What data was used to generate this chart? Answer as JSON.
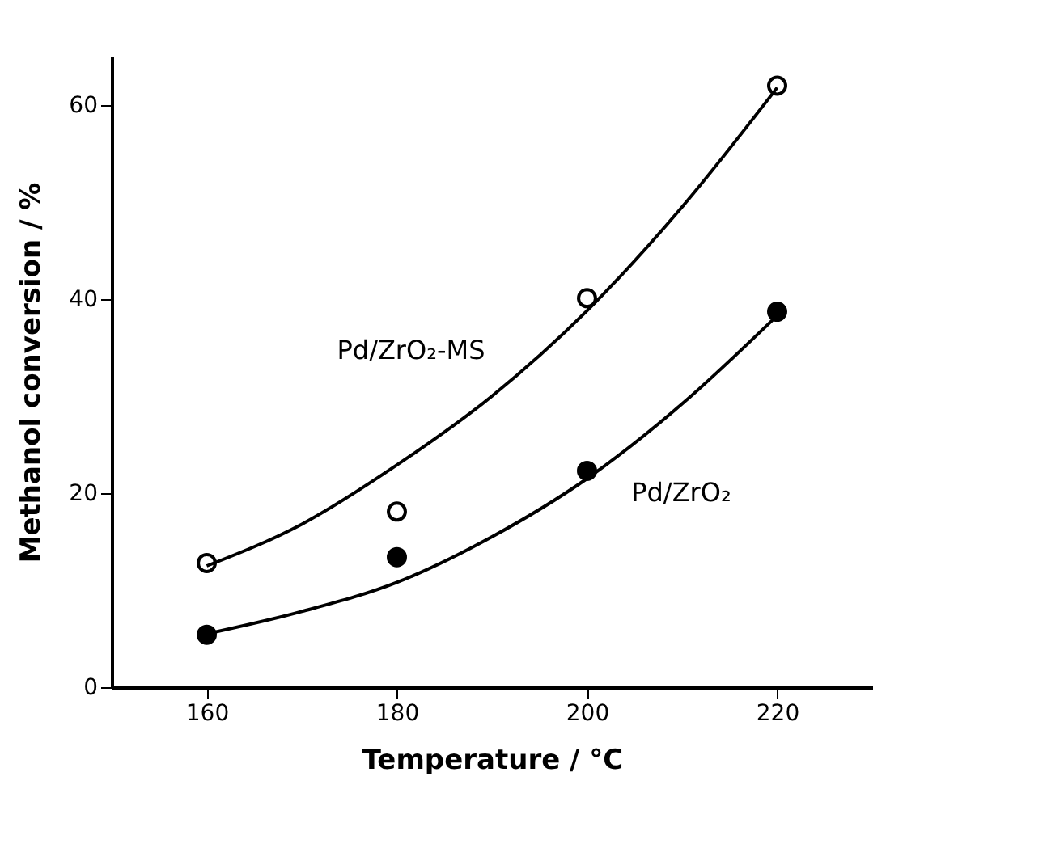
{
  "chart_data": {
    "type": "scatter",
    "xlabel": "Temperature / °C",
    "ylabel": "Methanol conversion / %",
    "xlim": [
      150,
      230
    ],
    "xticks": [
      160,
      180,
      200,
      220
    ],
    "ylim": [
      0,
      65
    ],
    "yticks": [
      0,
      20,
      40,
      60
    ],
    "grid": false,
    "series": [
      {
        "marker": "circle",
        "color": "#ffffff",
        "x": [
          160,
          180,
          200,
          220
        ],
        "values": [
          12.8,
          18.1,
          40.1,
          62.0
        ]
      },
      {
        "marker": "circle",
        "color": "#000000",
        "x": [
          160,
          180,
          200,
          220
        ],
        "values": [
          5.4,
          13.4,
          22.3,
          38.7
        ]
      },
      {
        "type": "line",
        "name": "Pd/ZrO₂-MS",
        "marker": "none",
        "line_style": "solid",
        "color": "#000000",
        "x": [
          160,
          170,
          180,
          190,
          200,
          210,
          220
        ],
        "values": [
          12.5,
          16.8,
          22.9,
          30.0,
          38.8,
          49.5,
          61.8
        ]
      },
      {
        "type": "line",
        "name": "Pd/ZrO₂",
        "marker": "none",
        "line_style": "solid",
        "color": "#000000",
        "x": [
          160,
          170,
          180,
          190,
          200,
          210,
          220
        ],
        "values": [
          5.5,
          7.8,
          10.8,
          15.5,
          21.5,
          29.2,
          38.3
        ]
      }
    ]
  }
}
